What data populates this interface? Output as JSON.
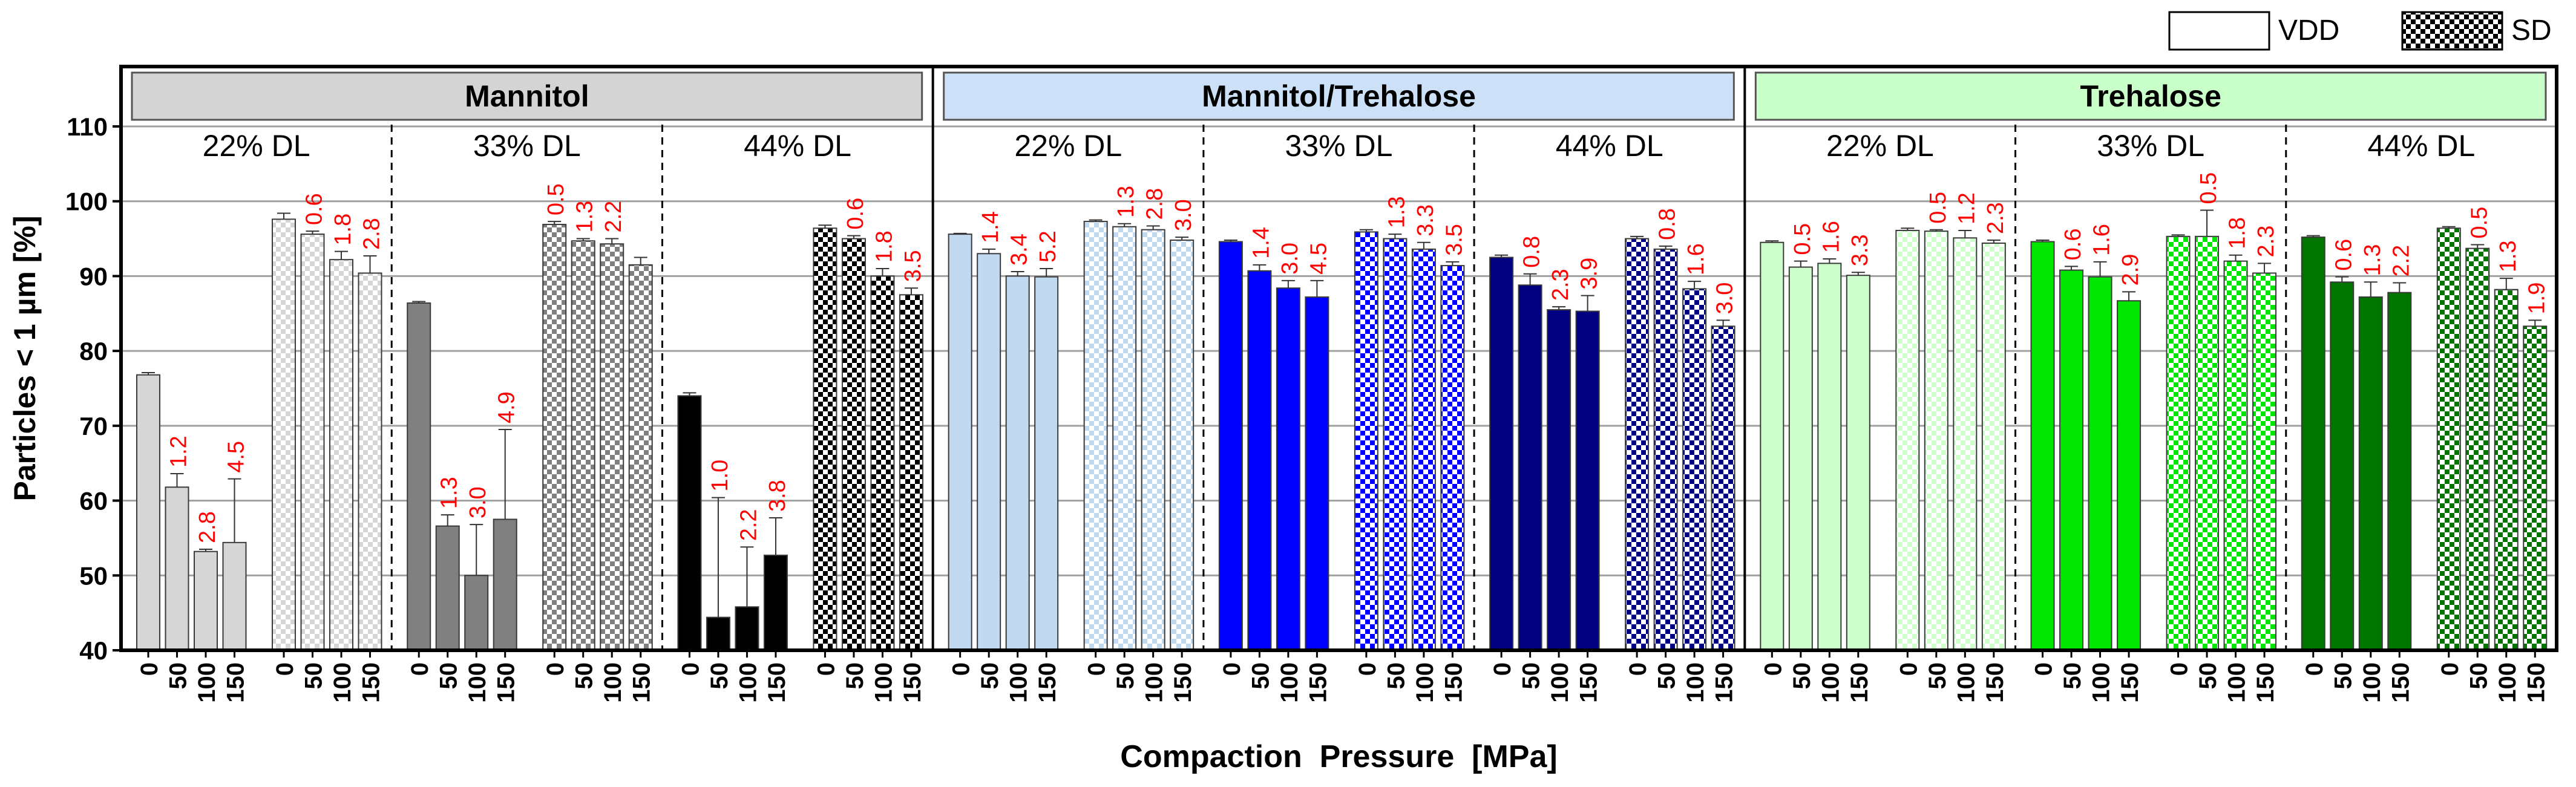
{
  "chart_data": {
    "type": "bar",
    "ylabel": "Particles < 1 µm [%]",
    "xlabel": "Compaction  Pressure  [MPa]",
    "ylim": [
      40,
      118
    ],
    "yticks": [
      40,
      50,
      60,
      70,
      80,
      90,
      100,
      110
    ],
    "legend": {
      "placement": "top-right",
      "entries": [
        {
          "name": "VDD",
          "pattern": "solid"
        },
        {
          "name": "SD",
          "pattern": "checker"
        }
      ]
    },
    "pressures": [
      "0",
      "50",
      "100",
      "150"
    ],
    "groups": [
      {
        "name": "Mannitol",
        "header_color": "#d4d4d4",
        "subgroups": [
          {
            "label": "22% DL",
            "color": "#d6d6d6",
            "series": [
              {
                "method": "VDD",
                "values": [
                  76.8,
                  61.8,
                  53.2,
                  54.4
                ],
                "errors": [
                  0.3,
                  1.8,
                  0.3,
                  8.5
                ],
                "labels": [
                  "",
                  "1.2",
                  "2.8",
                  "4.5"
                ]
              },
              {
                "method": "SD",
                "values": [
                  97.6,
                  95.6,
                  92.2,
                  90.4
                ],
                "errors": [
                  0.8,
                  0.4,
                  1.1,
                  2.3
                ],
                "labels": [
                  "",
                  "0.6",
                  "1.8",
                  "2.8"
                ]
              }
            ]
          },
          {
            "label": "33% DL",
            "color": "#808080",
            "series": [
              {
                "method": "VDD",
                "values": [
                  86.4,
                  56.6,
                  50.0,
                  57.5
                ],
                "errors": [
                  0.2,
                  1.5,
                  6.8,
                  12.0
                ],
                "labels": [
                  "",
                  "1.3",
                  "3.0",
                  "4.9"
                ]
              },
              {
                "method": "SD",
                "values": [
                  96.9,
                  94.7,
                  94.3,
                  91.5
                ],
                "errors": [
                  0.4,
                  0.3,
                  0.7,
                  1.0
                ],
                "labels": [
                  "0.5",
                  "1.3",
                  "2.2",
                  ""
                ]
              }
            ]
          },
          {
            "label": "44% DL",
            "color": "#000000",
            "series": [
              {
                "method": "VDD",
                "values": [
                  74.0,
                  44.4,
                  45.8,
                  52.7
                ],
                "errors": [
                  0.4,
                  16.0,
                  8.0,
                  5.0
                ],
                "labels": [
                  "",
                  "1.0",
                  "2.2",
                  "3.8"
                ]
              },
              {
                "method": "SD",
                "values": [
                  96.4,
                  95.0,
                  90.0,
                  87.5
                ],
                "errors": [
                  0.4,
                  0.4,
                  1.0,
                  0.9
                ],
                "labels": [
                  "",
                  "0.6",
                  "1.8",
                  "3.5"
                ]
              }
            ]
          }
        ]
      },
      {
        "name": "Mannitol/Trehalose",
        "header_color": "#cce0f7",
        "subgroups": [
          {
            "label": "22% DL",
            "color": "#c2d9f2",
            "series": [
              {
                "method": "VDD",
                "values": [
                  95.6,
                  93.0,
                  90.0,
                  89.9
                ],
                "errors": [
                  0.1,
                  0.6,
                  0.6,
                  1.1
                ],
                "labels": [
                  "",
                  "1.4",
                  "3.4",
                  "5.2"
                ]
              },
              {
                "method": "SD",
                "values": [
                  97.3,
                  96.6,
                  96.2,
                  94.8
                ],
                "errors": [
                  0.2,
                  0.4,
                  0.5,
                  0.4
                ],
                "labels": [
                  "",
                  "1.3",
                  "2.8",
                  "3.0"
                ]
              }
            ]
          },
          {
            "label": "33% DL",
            "color": "#0000ff",
            "series": [
              {
                "method": "VDD",
                "values": [
                  94.6,
                  90.7,
                  88.4,
                  87.2
                ],
                "errors": [
                  0.2,
                  0.8,
                  1.0,
                  2.2
                ],
                "labels": [
                  "",
                  "1.4",
                  "3.0",
                  "4.5"
                ]
              },
              {
                "method": "SD",
                "values": [
                  95.9,
                  95.0,
                  93.6,
                  91.4
                ],
                "errors": [
                  0.3,
                  0.6,
                  0.9,
                  0.5
                ],
                "labels": [
                  "",
                  "1.3",
                  "3.3",
                  "3.5"
                ]
              }
            ]
          },
          {
            "label": "44% DL",
            "color": "#000080",
            "series": [
              {
                "method": "VDD",
                "values": [
                  92.5,
                  88.8,
                  85.5,
                  85.3
                ],
                "errors": [
                  0.3,
                  1.5,
                  0.4,
                  2.1
                ],
                "labels": [
                  "",
                  "0.8",
                  "2.3",
                  "3.9"
                ]
              },
              {
                "method": "SD",
                "values": [
                  95.0,
                  93.6,
                  88.3,
                  83.3
                ],
                "errors": [
                  0.3,
                  0.4,
                  1.0,
                  0.8
                ],
                "labels": [
                  "",
                  "0.8",
                  "1.6",
                  "3.0"
                ]
              }
            ]
          }
        ]
      },
      {
        "name": "Trehalose",
        "header_color": "#c9ffc9",
        "subgroups": [
          {
            "label": "22% DL",
            "color": "#ccffcc",
            "series": [
              {
                "method": "VDD",
                "values": [
                  94.5,
                  91.2,
                  91.7,
                  90.1
                ],
                "errors": [
                  0.2,
                  0.8,
                  0.6,
                  0.4
                ],
                "labels": [
                  "",
                  "0.5",
                  "1.6",
                  "3.3"
                ]
              },
              {
                "method": "SD",
                "values": [
                  96.1,
                  96.0,
                  95.1,
                  94.4
                ],
                "errors": [
                  0.3,
                  0.2,
                  1.0,
                  0.4
                ],
                "labels": [
                  "",
                  "0.5",
                  "1.2",
                  "2.3"
                ]
              }
            ]
          },
          {
            "label": "33% DL",
            "color": "#00e600",
            "series": [
              {
                "method": "VDD",
                "values": [
                  94.6,
                  90.8,
                  89.9,
                  86.7
                ],
                "errors": [
                  0.2,
                  0.5,
                  2.0,
                  1.2
                ],
                "labels": [
                  "",
                  "0.6",
                  "1.6",
                  "2.9"
                ]
              },
              {
                "method": "SD",
                "values": [
                  95.3,
                  95.3,
                  92.0,
                  90.4
                ],
                "errors": [
                  0.2,
                  3.5,
                  0.8,
                  1.3
                ],
                "labels": [
                  "",
                  "0.5",
                  "1.8",
                  "2.3"
                ]
              }
            ]
          },
          {
            "label": "44% DL",
            "color": "#007500",
            "series": [
              {
                "method": "VDD",
                "values": [
                  95.2,
                  89.2,
                  87.2,
                  87.8
                ],
                "errors": [
                  0.2,
                  0.7,
                  2.0,
                  1.3
                ],
                "labels": [
                  "",
                  "0.6",
                  "1.3",
                  "2.2"
                ]
              },
              {
                "method": "SD",
                "values": [
                  96.4,
                  93.7,
                  88.2,
                  83.3
                ],
                "errors": [
                  0.2,
                  0.5,
                  1.5,
                  0.8
                ],
                "labels": [
                  "",
                  "0.5",
                  "1.3",
                  "1.9"
                ]
              }
            ]
          }
        ]
      }
    ]
  }
}
